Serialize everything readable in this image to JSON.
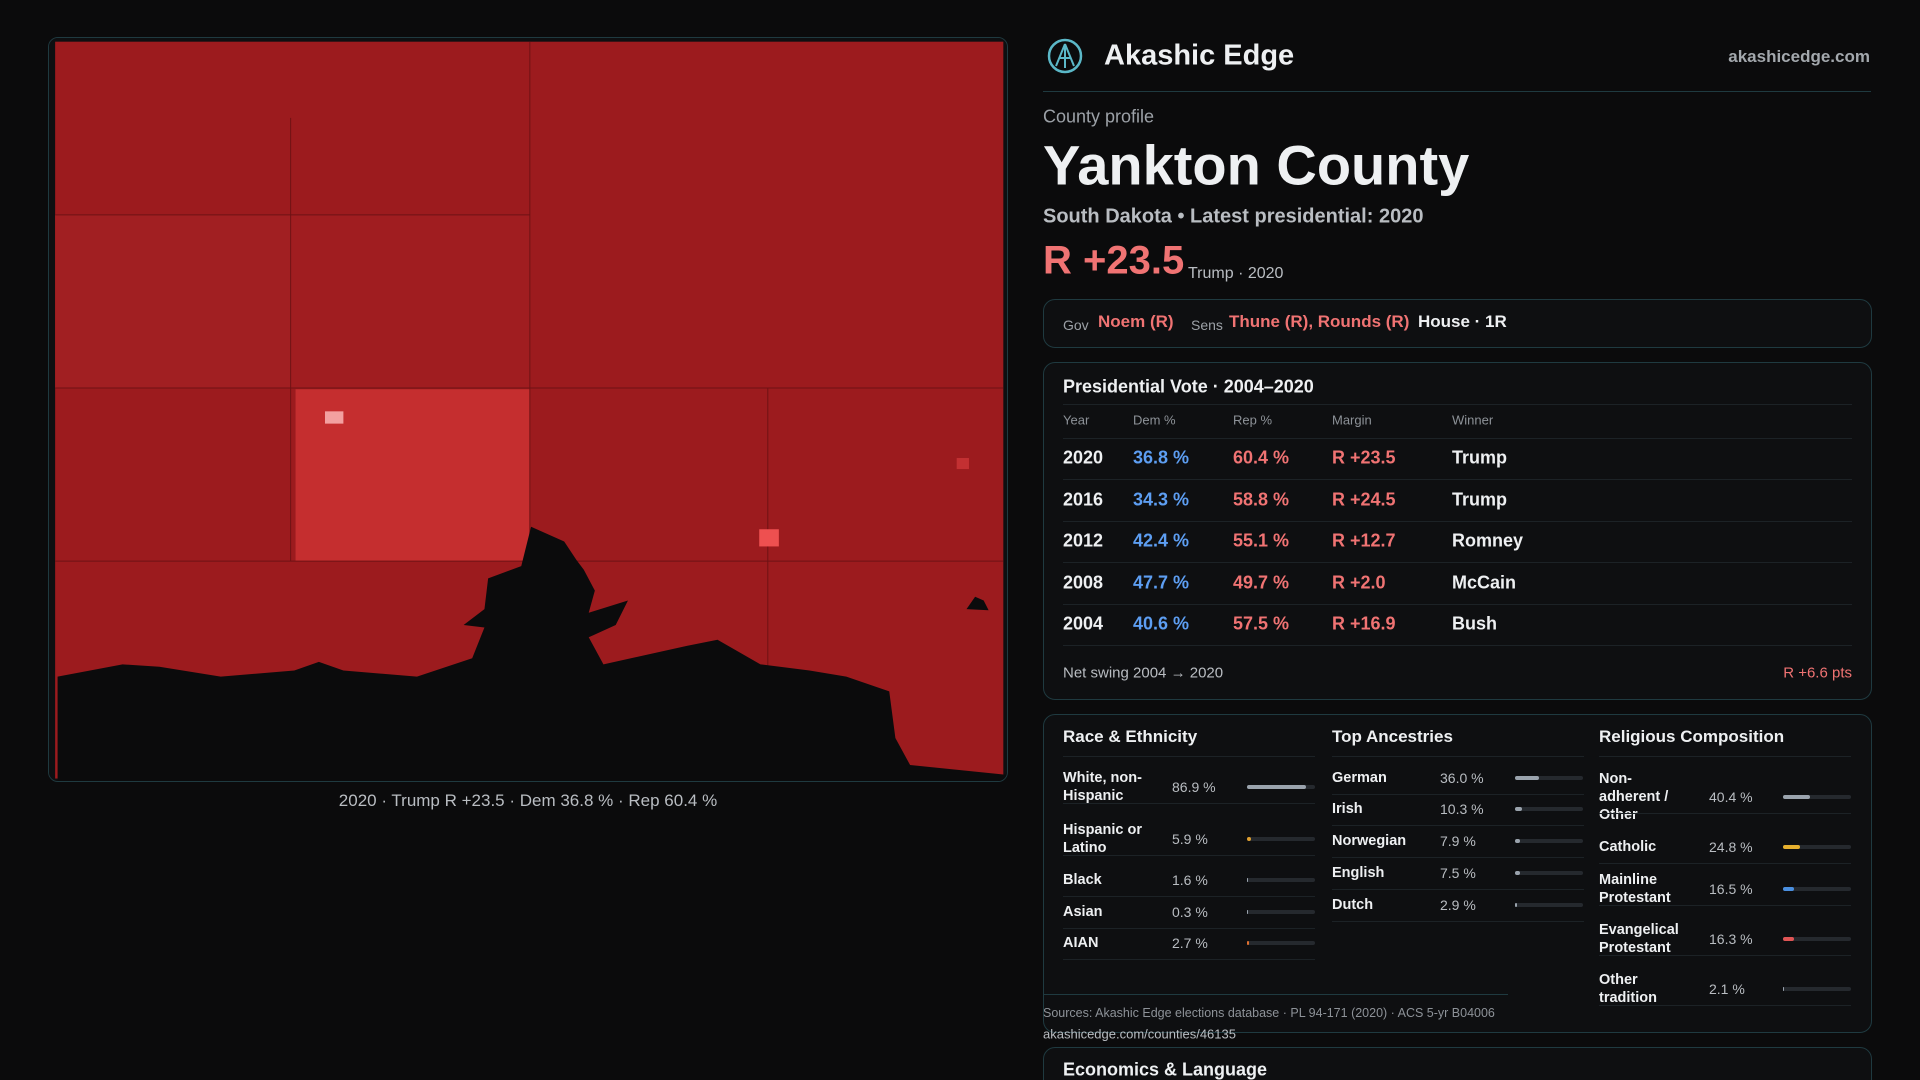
{
  "header": {
    "brand": "Akashic Edge",
    "site": "akashicedge.com"
  },
  "map": {
    "caption": "2020 · Trump R +23.5 · Dem 36.8 % · Rep 60.4 %"
  },
  "profile": {
    "kicker": "County profile",
    "title": "Yankton County",
    "subtitle": "South Dakota • Latest presidential: 2020",
    "margin": "R +23.5",
    "margin_note": "Trump · 2020"
  },
  "officials": {
    "gov_label": "Gov",
    "gov": "Noem (R)",
    "sens_label": "Sens",
    "sens": "Thune (R), Rounds (R)",
    "house": "House · 1R"
  },
  "presidential": {
    "title": "Presidential Vote · 2004–2020",
    "columns": [
      "Year",
      "Dem %",
      "Rep %",
      "Margin",
      "Winner"
    ],
    "rows": [
      [
        "2020",
        "36.8 %",
        "60.4 %",
        "R +23.5",
        "Trump"
      ],
      [
        "2016",
        "34.3 %",
        "58.8 %",
        "R +24.5",
        "Trump"
      ],
      [
        "2012",
        "42.4 %",
        "55.1 %",
        "R +12.7",
        "Romney"
      ],
      [
        "2008",
        "47.7 %",
        "49.7 %",
        "R +2.0",
        "McCain"
      ],
      [
        "2004",
        "40.6 %",
        "57.5 %",
        "R +16.9",
        "Bush"
      ]
    ],
    "swing_label": "Net swing 2004 → 2020",
    "swing": "R +6.6 pts"
  },
  "demographics": [
    {
      "title": "Race & Ethnicity",
      "items": [
        {
          "name": "White, non-Hispanic",
          "value": 86.9,
          "value_label": "86.9 %",
          "color": "#9aa3ad"
        },
        {
          "name": "Hispanic or Latino",
          "value": 5.9,
          "value_label": "5.9 %",
          "color": "#e0a030"
        },
        {
          "name": "Black",
          "value": 1.6,
          "value_label": "1.6 %",
          "color": "#9aa3ad"
        },
        {
          "name": "Asian",
          "value": 0.3,
          "value_label": "0.3 %",
          "color": "#9aa3ad"
        },
        {
          "name": "AIAN",
          "value": 2.7,
          "value_label": "2.7 %",
          "color": "#e07030"
        }
      ]
    },
    {
      "title": "Top Ancestries",
      "items": [
        {
          "name": "German",
          "value": 36.0,
          "value_label": "36.0 %",
          "color": "#9aa3ad"
        },
        {
          "name": "Irish",
          "value": 10.3,
          "value_label": "10.3 %",
          "color": "#9aa3ad"
        },
        {
          "name": "Norwegian",
          "value": 7.9,
          "value_label": "7.9 %",
          "color": "#9aa3ad"
        },
        {
          "name": "English",
          "value": 7.5,
          "value_label": "7.5 %",
          "color": "#9aa3ad"
        },
        {
          "name": "Dutch",
          "value": 2.9,
          "value_label": "2.9 %",
          "color": "#9aa3ad"
        }
      ]
    },
    {
      "title": "Religious Composition",
      "items": [
        {
          "name": "Non-adherent / Other",
          "value": 40.4,
          "value_label": "40.4 %",
          "color": "#9aa3ad"
        },
        {
          "name": "Catholic",
          "value": 24.8,
          "value_label": "24.8 %",
          "color": "#e6b02e"
        },
        {
          "name": "Mainline Protestant",
          "value": 16.5,
          "value_label": "16.5 %",
          "color": "#4a8fe0"
        },
        {
          "name": "Evangelical Protestant",
          "value": 16.3,
          "value_label": "16.3 %",
          "color": "#e05555"
        },
        {
          "name": "Other tradition",
          "value": 2.1,
          "value_label": "2.1 %",
          "color": "#9aa3ad"
        }
      ]
    }
  ],
  "sources": {
    "text": "Sources: Akashic Edge elections database · PL 94-171 (2020) · ACS 5-yr B04006",
    "url": "akashicedge.com/counties/46135"
  },
  "economics": {
    "title": "Economics & Language"
  }
}
